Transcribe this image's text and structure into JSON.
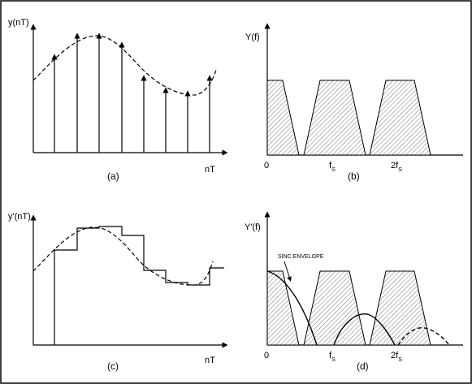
{
  "panel_a": {
    "y_label": "y(nT)",
    "x_label": "nT",
    "caption": "(a)"
  },
  "panel_b": {
    "y_label": "Y(f)",
    "tick_zero": "0",
    "tick_fs_main": "f",
    "tick_fs_sub": "S",
    "tick_2fs_main": "2f",
    "tick_2fs_sub": "S",
    "caption": "(b)"
  },
  "panel_c": {
    "y_label": "y'(nT)",
    "x_label": "nT",
    "caption": "(c)"
  },
  "panel_d": {
    "y_label": "Y'(f)",
    "tick_zero": "0",
    "tick_fs_main": "f",
    "tick_fs_sub": "S",
    "tick_2fs_main": "2f",
    "tick_2fs_sub": "S",
    "caption": "(d)",
    "annotation": "SINC ENVELOPE"
  },
  "colors": {
    "line": "#000000",
    "hatch": "#888888",
    "background": "#ffffff"
  }
}
